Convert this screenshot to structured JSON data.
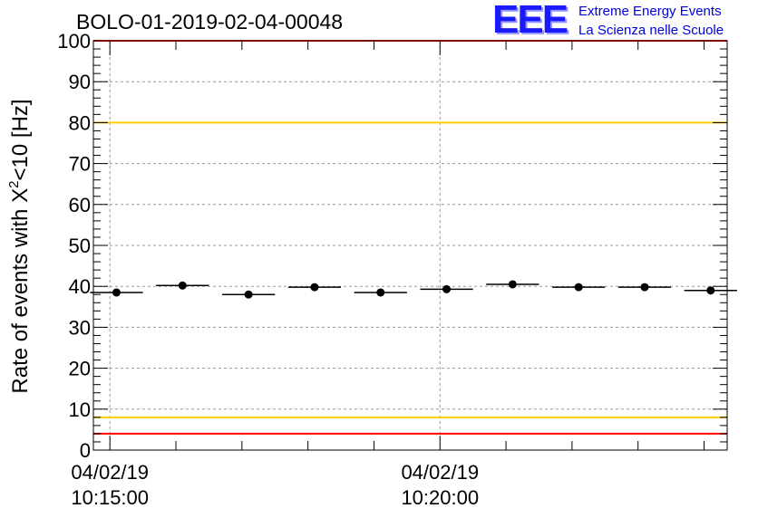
{
  "logo": {
    "letters": "EEE",
    "line1": "Extreme Energy Events",
    "line2": "La Scienza nelle Scuole"
  },
  "colors": {
    "red_threshold": "#ff0000",
    "yellow_threshold": "#ffcc00",
    "logo_blue": "#1a1aff",
    "data": "#000000"
  },
  "chart_data": {
    "type": "scatter",
    "title": "BOLO-01-2019-02-04-00048",
    "ylabel_main": "Rate of events with X",
    "ylabel_sup": "2",
    "ylabel_tail": "<10 [Hz]",
    "ylim": [
      0,
      100
    ],
    "yticks": [
      0,
      10,
      20,
      30,
      40,
      50,
      60,
      70,
      80,
      90,
      100
    ],
    "xlabels": [
      {
        "date": "04/02/19",
        "time": "10:15:00",
        "minute": 0
      },
      {
        "date": "04/02/19",
        "time": "10:20:00",
        "minute": 5
      }
    ],
    "xlim_minutes": [
      -0.25,
      9.35
    ],
    "grid": true,
    "thresholds": [
      {
        "value": 100,
        "color": "red"
      },
      {
        "value": 80,
        "color": "yellow"
      },
      {
        "value": 8,
        "color": "yellow"
      },
      {
        "value": 4,
        "color": "red"
      }
    ],
    "bin_width_minutes": 0.8,
    "points": [
      {
        "x": 0.1,
        "y": 38.5
      },
      {
        "x": 1.1,
        "y": 40.2
      },
      {
        "x": 2.1,
        "y": 38.0
      },
      {
        "x": 3.1,
        "y": 39.8
      },
      {
        "x": 4.1,
        "y": 38.5
      },
      {
        "x": 5.1,
        "y": 39.3
      },
      {
        "x": 6.1,
        "y": 40.5
      },
      {
        "x": 7.1,
        "y": 39.8
      },
      {
        "x": 8.1,
        "y": 39.8
      },
      {
        "x": 9.1,
        "y": 39.0
      }
    ]
  }
}
